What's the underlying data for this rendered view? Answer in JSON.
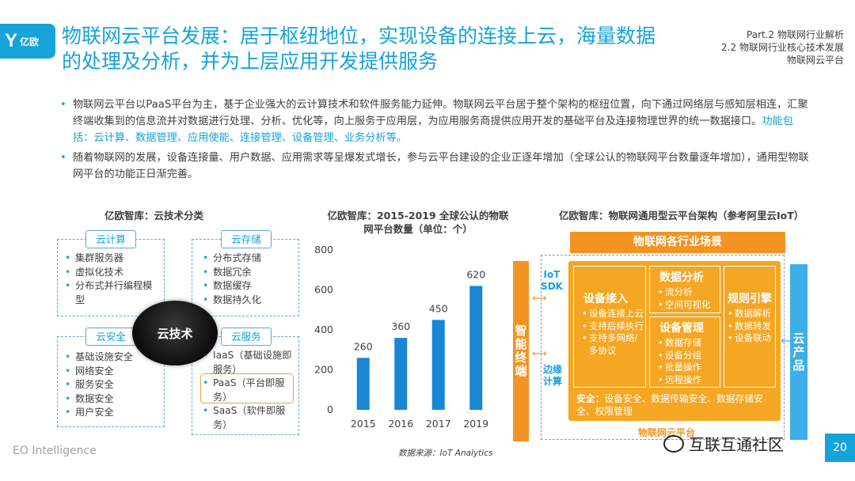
{
  "logo": {
    "mark": "Y",
    "text": "亿欧"
  },
  "title": "物联网云平台发展：居于枢纽地位，实现设备的连接上云，海量数据的处理及分析，并为上层应用开发提供服务",
  "breadcrumb": [
    "Part.2 物联网行业解析",
    "2.2 物联网行业核心技术发展",
    "物联网云平台"
  ],
  "bullets": {
    "b1_plain": "物联网云平台以PaaS平台为主，基于企业强大的云计算技术和软件服务能力延伸。物联网云平台居于整个架构的枢纽位置，向下通过网络层与感知层相连，汇聚终端收集到的信息流并对数据进行处理、分析、优化等，向上服务于应用层，为应用服务商提供应用开发的基础平台及连接物理世界的统一数据接口。",
    "b1_highlight": "功能包括：云计算、数据管理、应用使能、连接管理、设备管理、业务分析等。",
    "b2": "随着物联网的发展，设备连接量、用户数据、应用需求等呈爆发式增长，参与云平台建设的企业正逐年增加（全球公认的物联网平台数量逐年增加），通用型物联网平台的功能正日渐完善。"
  },
  "cloud": {
    "title": "亿欧智库：云技术分类",
    "hub": "云技术",
    "computing": {
      "label": "云计算",
      "items": [
        "集群服务器",
        "虚拟化技术",
        "分布式并行编程模型"
      ]
    },
    "storage": {
      "label": "云存储",
      "items": [
        "分布式存储",
        "数据冗余",
        "数据缓存",
        "数据持久化"
      ]
    },
    "security": {
      "label": "云安全",
      "items": [
        "基础设施安全",
        "网络安全",
        "服务安全",
        "数据安全",
        "用户安全"
      ]
    },
    "service": {
      "label": "云服务",
      "items": [
        "IaaS（基础设施即服务）",
        "PaaS（平台即服务）",
        "SaaS（软件即服务）"
      ]
    }
  },
  "chart_title": "亿欧智库：2015-2019 全球公认的物联网平台数量（单位：个）",
  "chart_data": {
    "type": "bar",
    "title": "亿欧智库：2015-2019 全球公认的物联网平台数量（单位：个）",
    "categories": [
      "2015",
      "2016",
      "2017",
      "2019"
    ],
    "values": [
      260,
      360,
      450,
      620
    ],
    "ylim": [
      0,
      800
    ],
    "yticks": [
      0,
      200,
      400,
      600,
      800
    ],
    "bar_color": "#1a86d6",
    "grid": false
  },
  "arch": {
    "title": "亿欧智库：物联网通用型云平台架构（参考阿里云IoT）",
    "scene": "物联网各行业场景",
    "terminal": "智能终端",
    "iot_sdk": "IoT SDK",
    "edge": "边缘计算",
    "cloud_product": "云产品",
    "access": {
      "title": "设备接入",
      "items": [
        "设备连接上云",
        "支持后续执行",
        "支持多网络/多协议"
      ]
    },
    "analysis": {
      "title": "数据分析",
      "items": [
        "流分析",
        "空间可视化"
      ]
    },
    "device_mgmt": {
      "title": "设备管理",
      "items": [
        "数据存储",
        "设备分组",
        "批量操作",
        "远程操作"
      ]
    },
    "rules": {
      "title": "规则引擎",
      "items": [
        "数据解析",
        "数据转发",
        "设备联动"
      ]
    },
    "security_label": "安全：",
    "security_text": "设备安全、数据传输安全、数据存储安全、权限管理",
    "bottom_label": "物联网云平台"
  },
  "footer": {
    "brand": "EO Intelligence",
    "source": "数据来源：IoT Analytics",
    "wechat": "互联互通社区",
    "page": "20"
  },
  "colors": {
    "accent": "#16a3d9",
    "orange": "#f5a623",
    "dark_orange": "#f29422",
    "bar": "#1a86d6"
  }
}
